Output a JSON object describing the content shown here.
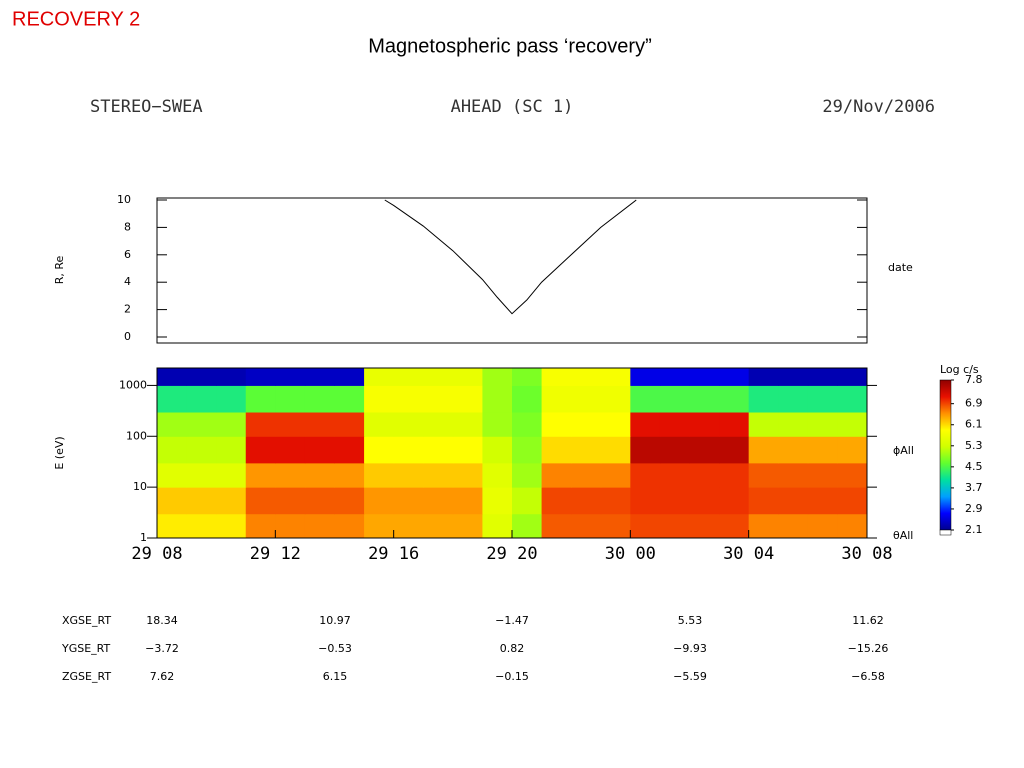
{
  "slide_label": "RECOVERY 2",
  "slide_title": "Magnetospheric pass ‘recovery”",
  "header": {
    "left": "STEREO−SWEA",
    "center": "AHEAD (SC 1)",
    "right": "29/Nov/2006"
  },
  "chart_data": [
    {
      "type": "line",
      "ylabel": "R, Re",
      "right_label": "date",
      "color": "#000000",
      "x": [
        15.7,
        16,
        17,
        18,
        19,
        19.5,
        20,
        20.5,
        21,
        22,
        23,
        24.2
      ],
      "values": [
        10,
        9.6,
        8.1,
        6.3,
        4.2,
        2.9,
        1.7,
        2.7,
        4.0,
        6.0,
        8.0,
        10
      ],
      "xlim": [
        8,
        32
      ],
      "ylim": [
        0,
        10
      ],
      "yticks": [
        0,
        2,
        4,
        6,
        8,
        10
      ]
    },
    {
      "type": "heatmap",
      "ylabel": "E (eV)",
      "log_y": true,
      "right_labels": [
        "ϕAll",
        "θAll"
      ],
      "x": [
        8,
        9,
        10,
        11,
        12,
        13,
        14,
        15,
        16,
        17,
        18,
        19,
        20,
        21,
        22,
        23,
        24,
        25,
        26,
        27,
        28,
        29,
        30,
        31,
        32
      ],
      "y": [
        1,
        3,
        10,
        30,
        100,
        300,
        1000,
        2200
      ],
      "z": [
        [
          6.0,
          6.0,
          6.0,
          6.6,
          6.6,
          6.6,
          6.6,
          6.4,
          6.4,
          6.4,
          6.4,
          5.5,
          5.0,
          6.8,
          6.8,
          6.8,
          6.9,
          6.9,
          6.9,
          6.9,
          6.6,
          6.6,
          6.6,
          6.6
        ],
        [
          6.2,
          6.2,
          6.2,
          6.8,
          6.8,
          6.8,
          6.8,
          6.5,
          6.5,
          6.5,
          6.5,
          5.6,
          5.2,
          6.9,
          6.9,
          6.9,
          7.0,
          7.0,
          7.0,
          7.0,
          6.9,
          6.9,
          6.9,
          6.9
        ],
        [
          5.5,
          5.5,
          5.5,
          6.5,
          6.5,
          6.5,
          6.5,
          6.2,
          6.2,
          6.2,
          6.2,
          5.5,
          5.0,
          6.6,
          6.6,
          6.6,
          7.0,
          7.0,
          7.0,
          7.0,
          6.8,
          6.8,
          6.8,
          6.8
        ],
        [
          5.2,
          5.2,
          5.2,
          7.2,
          7.2,
          7.2,
          7.2,
          5.9,
          5.9,
          5.9,
          5.9,
          5.3,
          4.9,
          6.1,
          6.1,
          6.1,
          7.5,
          7.5,
          7.5,
          7.5,
          6.4,
          6.4,
          6.4,
          6.4
        ],
        [
          5.0,
          5.0,
          5.0,
          7.0,
          7.0,
          7.0,
          7.0,
          5.5,
          5.5,
          5.5,
          5.5,
          5.0,
          4.8,
          5.9,
          5.9,
          5.9,
          7.2,
          7.2,
          7.2,
          7.2,
          5.2,
          5.2,
          5.2,
          5.2
        ],
        [
          4.2,
          4.2,
          4.2,
          4.6,
          4.6,
          4.6,
          4.6,
          5.8,
          5.8,
          5.8,
          5.8,
          5.0,
          4.7,
          5.7,
          5.7,
          5.7,
          4.5,
          4.5,
          4.5,
          4.5,
          4.2,
          4.2,
          4.2,
          4.2
        ],
        [
          2.3,
          2.3,
          2.3,
          2.4,
          2.4,
          2.4,
          2.4,
          5.6,
          5.6,
          5.6,
          5.6,
          5.0,
          4.8,
          5.8,
          5.8,
          5.8,
          2.6,
          2.6,
          2.6,
          2.6,
          2.3,
          2.3,
          2.3,
          2.3
        ]
      ],
      "xlim": [
        8,
        32
      ],
      "xticks": [
        {
          "value": 8,
          "label": "29 08"
        },
        {
          "value": 12,
          "label": "29 12"
        },
        {
          "value": 16,
          "label": "29 16"
        },
        {
          "value": 20,
          "label": "29 20"
        },
        {
          "value": 24,
          "label": "30 00"
        },
        {
          "value": 28,
          "label": "30 04"
        },
        {
          "value": 32,
          "label": "30 08"
        }
      ],
      "ylim": [
        1,
        2200
      ],
      "yticks": [
        1,
        10,
        100,
        1000
      ],
      "colorbar": {
        "title": "Log c/s",
        "zlim": [
          2.1,
          7.8
        ],
        "ticks": [
          7.8,
          6.9,
          6.1,
          5.3,
          4.5,
          3.7,
          2.9,
          2.1
        ],
        "colorscale": [
          "#00008f",
          "#0000ff",
          "#00a0ff",
          "#00e0a0",
          "#60ff30",
          "#d0ff00",
          "#ffff00",
          "#ff9000",
          "#e81000",
          "#900000"
        ]
      }
    }
  ],
  "table": {
    "rows": [
      {
        "label": "XGSE_RT",
        "values": [
          "18.34",
          "10.97",
          "−1.47",
          "5.53",
          "11.62"
        ]
      },
      {
        "label": "YGSE_RT",
        "values": [
          "−3.72",
          "−0.53",
          "0.82",
          "−9.93",
          "−15.26"
        ]
      },
      {
        "label": "ZGSE_RT",
        "values": [
          "7.62",
          "6.15",
          "−0.15",
          "−5.59",
          "−6.58"
        ]
      }
    ]
  }
}
